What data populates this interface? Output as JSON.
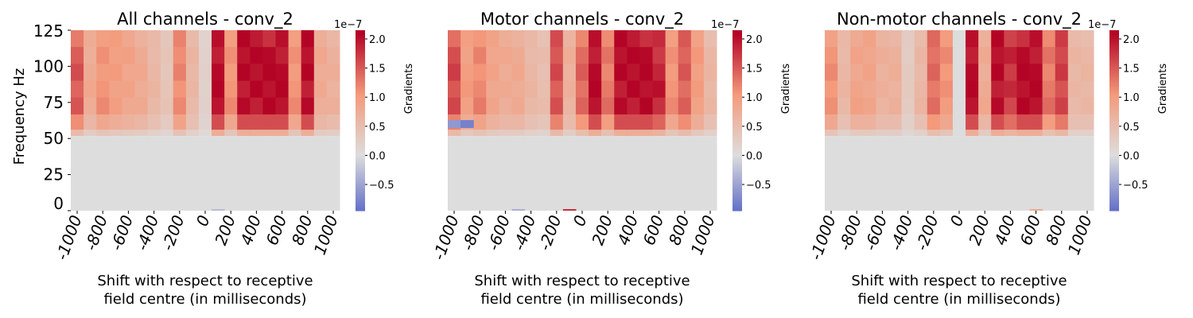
{
  "chart_data": [
    {
      "type": "heatmap",
      "title": "All channels - conv_2",
      "ylabel": "Frequency Hz",
      "xlabel_lines": [
        "Shift with respect to receptive",
        "field centre (in milliseconds)"
      ],
      "y_ticks": [
        "125",
        "100",
        "75",
        "50",
        "25",
        "0"
      ],
      "x_ticks": [
        "-1000",
        "-800",
        "-600",
        "-400",
        "-200",
        "0",
        "200",
        "400",
        "600",
        "800",
        "1000"
      ],
      "xlim": [
        -1000,
        1000
      ],
      "ylim": [
        0,
        125
      ],
      "colorbar": {
        "label": "Gradients",
        "exponent": "1e−7",
        "ticks": [
          "−0.5",
          "0.0",
          "0.5",
          "1.0",
          "1.5",
          "2.0"
        ],
        "range": [
          -0.95,
          2.15
        ]
      },
      "colormap": [
        "#3b4cc0",
        "#dddddd",
        "#b40426"
      ],
      "high_band_start_hz": 55,
      "x": [
        -1000,
        -900,
        -800,
        -700,
        -600,
        -500,
        -400,
        -300,
        -200,
        -100,
        0,
        100,
        200,
        300,
        400,
        500,
        600,
        700,
        800,
        900,
        1000
      ],
      "high_band_values": [
        1.5,
        0.8,
        1.1,
        1.0,
        0.9,
        0.8,
        0.6,
        0.4,
        1.2,
        0.6,
        0.2,
        2.1,
        1.1,
        2.1,
        2.1,
        2.1,
        2.1,
        1.1,
        2.1,
        0.8,
        0.7
      ],
      "low_band_values": [
        0,
        0,
        0,
        0,
        0,
        0,
        0,
        0,
        0,
        0,
        0,
        0,
        0,
        0,
        0,
        0,
        0,
        0,
        0,
        0,
        0
      ],
      "anomalies": [
        {
          "x": 100,
          "band": "bottom",
          "value": -0.3
        }
      ]
    },
    {
      "type": "heatmap",
      "title": "Motor channels - conv_2",
      "ylabel": "",
      "xlabel_lines": [
        "Shift with respect to receptive",
        "field centre (in milliseconds)"
      ],
      "y_ticks": [],
      "x_ticks": [
        "-1000",
        "-800",
        "-600",
        "-400",
        "-200",
        "0",
        "200",
        "400",
        "600",
        "800",
        "1000"
      ],
      "xlim": [
        -1000,
        1000
      ],
      "ylim": [
        0,
        125
      ],
      "colorbar": {
        "label": "Gradients",
        "exponent": "1e−7",
        "ticks": [
          "−0.5",
          "0.0",
          "0.5",
          "1.0",
          "1.5",
          "2.0"
        ],
        "range": [
          -0.95,
          2.15
        ]
      },
      "colormap": [
        "#3b4cc0",
        "#dddddd",
        "#b40426"
      ],
      "high_band_start_hz": 55,
      "x": [
        -1000,
        -900,
        -800,
        -700,
        -600,
        -500,
        -400,
        -300,
        -200,
        -100,
        0,
        100,
        200,
        300,
        400,
        500,
        600,
        700,
        800,
        900,
        1000
      ],
      "high_band_values": [
        1.6,
        1.0,
        1.2,
        0.9,
        0.8,
        0.8,
        0.6,
        0.5,
        1.6,
        0.7,
        1.4,
        2.1,
        1.3,
        2.1,
        2.1,
        2.1,
        1.9,
        1.1,
        1.5,
        1.0,
        0.6
      ],
      "low_band_values": [
        0,
        0,
        0,
        0,
        0,
        0,
        0,
        0,
        0,
        0,
        0,
        0,
        0,
        0,
        0,
        0,
        0,
        0,
        0,
        0,
        0
      ],
      "anomalies": [
        {
          "x": -1000,
          "band": "mid",
          "value": -0.6
        },
        {
          "x": -900,
          "band": "mid",
          "value": -0.8
        },
        {
          "x": -500,
          "band": "bottom",
          "value": -0.4
        },
        {
          "x": -100,
          "band": "bottom",
          "value": 1.8
        }
      ]
    },
    {
      "type": "heatmap",
      "title": "Non-motor channels - conv_2",
      "ylabel": "",
      "xlabel_lines": [
        "Shift with respect to receptive",
        "field centre (in milliseconds)"
      ],
      "y_ticks": [],
      "x_ticks": [
        "-1000",
        "-800",
        "-600",
        "-400",
        "-200",
        "0",
        "200",
        "400",
        "600",
        "800",
        "1000"
      ],
      "xlim": [
        -1000,
        1000
      ],
      "ylim": [
        0,
        125
      ],
      "colorbar": {
        "label": "Gradients",
        "exponent": "1e−7",
        "ticks": [
          "−0.5",
          "0.0",
          "0.5",
          "1.0",
          "1.5",
          "2.0"
        ],
        "range": [
          -0.95,
          2.15
        ]
      },
      "colormap": [
        "#3b4cc0",
        "#dddddd",
        "#b40426"
      ],
      "high_band_start_hz": 55,
      "x": [
        -1000,
        -900,
        -800,
        -700,
        -600,
        -500,
        -400,
        -300,
        -200,
        -100,
        0,
        100,
        200,
        300,
        400,
        500,
        600,
        700,
        800,
        900,
        1000
      ],
      "high_band_values": [
        1.1,
        0.6,
        0.9,
        0.9,
        0.7,
        0.7,
        0.3,
        0.6,
        1.4,
        1.1,
        0.0,
        2.1,
        0.8,
        2.1,
        1.8,
        2.1,
        2.1,
        1.3,
        1.7,
        0.6,
        0.6
      ],
      "low_band_values": [
        0,
        0,
        0,
        0,
        0,
        0,
        0,
        0,
        0,
        0,
        0,
        0,
        0,
        0,
        0,
        0,
        0,
        0,
        0,
        0,
        0
      ],
      "anomalies": [
        {
          "x": 600,
          "band": "bottom",
          "value": 0.8
        }
      ]
    }
  ]
}
